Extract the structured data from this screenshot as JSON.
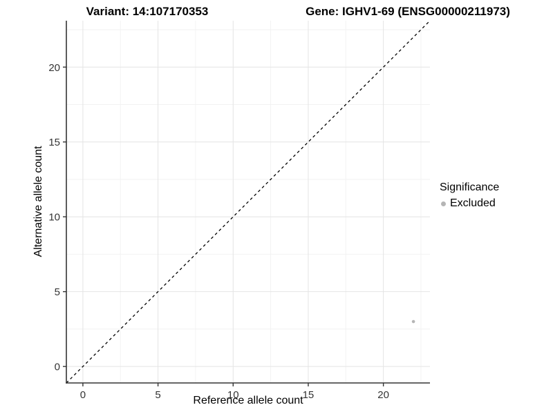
{
  "chart_data": {
    "type": "scatter",
    "title_left": "Variant: 14:107170353",
    "title_right": "Gene: IGHV1-69 (ENSG00000211973)",
    "xlabel": "Reference allele count",
    "ylabel": "Alternative allele count",
    "xlim": [
      -1.1,
      23.1
    ],
    "ylim": [
      -1.1,
      23.1
    ],
    "xticks": [
      0,
      5,
      10,
      15,
      20
    ],
    "yticks": [
      0,
      5,
      10,
      15,
      20
    ],
    "xticks_minor": [
      2.5,
      7.5,
      12.5,
      17.5,
      22.5
    ],
    "yticks_minor": [
      2.5,
      7.5,
      12.5,
      17.5,
      22.5
    ],
    "grid": "major+minor",
    "legend_position": "right",
    "reference_line": {
      "kind": "identity y=x",
      "style": "dashed",
      "color": "#000000"
    },
    "series": [
      {
        "name": "Excluded",
        "color": "#b5b5b5",
        "points": [
          [
            22,
            3
          ]
        ]
      }
    ],
    "legend": {
      "title": "Significance",
      "entries": [
        {
          "label": "Excluded",
          "color": "#b5b5b5"
        }
      ]
    },
    "colors": {
      "axis_line": "#333333",
      "tick_label": "#333333",
      "grid_major": "#e4e4e4",
      "grid_minor": "#f2f2f2",
      "background": "#ffffff"
    }
  }
}
